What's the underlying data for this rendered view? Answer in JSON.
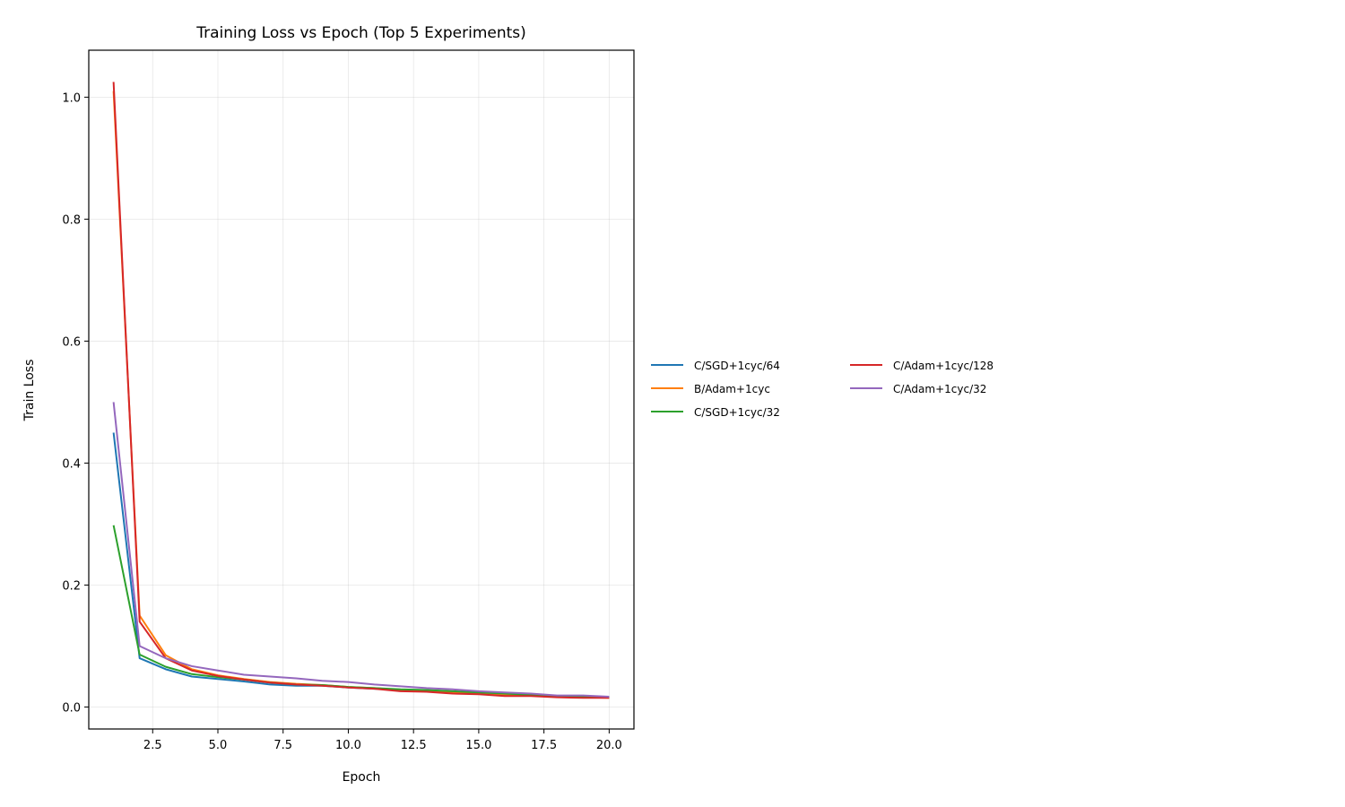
{
  "chart_data": {
    "type": "line",
    "title": "Training Loss vs Epoch (Top 5 Experiments)",
    "xlabel": "Epoch",
    "ylabel": "Train Loss",
    "xlim": [
      0.05,
      20.95
    ],
    "ylim": [
      -0.036,
      1.077
    ],
    "xticks": [
      2.5,
      5.0,
      7.5,
      10.0,
      12.5,
      15.0,
      17.5,
      20.0
    ],
    "xtick_labels": [
      "2.5",
      "5.0",
      "7.5",
      "10.0",
      "12.5",
      "15.0",
      "17.5",
      "20.0"
    ],
    "yticks": [
      0.0,
      0.2,
      0.4,
      0.6,
      0.8,
      1.0
    ],
    "ytick_labels": [
      "0.0",
      "0.2",
      "0.4",
      "0.6",
      "0.8",
      "1.0"
    ],
    "grid": true,
    "legend_placement": "outside right, 2 columns",
    "x": [
      1,
      2,
      3,
      4,
      5,
      6,
      7,
      8,
      9,
      10,
      11,
      12,
      13,
      14,
      15,
      16,
      17,
      18,
      19,
      20
    ],
    "series": [
      {
        "name": "C/SGD+1cyc/64",
        "color": "#1f77b4",
        "values": [
          0.45,
          0.08,
          0.062,
          0.05,
          0.046,
          0.042,
          0.037,
          0.035,
          0.035,
          0.032,
          0.03,
          0.028,
          0.027,
          0.025,
          0.023,
          0.021,
          0.019,
          0.017,
          0.017,
          0.016
        ]
      },
      {
        "name": "B/Adam+1cyc",
        "color": "#ff7f0e",
        "values": [
          1.01,
          0.15,
          0.085,
          0.062,
          0.052,
          0.046,
          0.041,
          0.038,
          0.036,
          0.033,
          0.031,
          0.028,
          0.027,
          0.024,
          0.022,
          0.02,
          0.019,
          0.017,
          0.016,
          0.015
        ]
      },
      {
        "name": "C/SGD+1cyc/32",
        "color": "#2ca02c",
        "values": [
          0.298,
          0.086,
          0.066,
          0.054,
          0.049,
          0.045,
          0.04,
          0.037,
          0.036,
          0.033,
          0.031,
          0.029,
          0.028,
          0.026,
          0.024,
          0.022,
          0.02,
          0.018,
          0.017,
          0.016
        ]
      },
      {
        "name": "C/Adam+1cyc/128",
        "color": "#d62728",
        "values": [
          1.025,
          0.14,
          0.08,
          0.06,
          0.051,
          0.045,
          0.04,
          0.037,
          0.035,
          0.032,
          0.03,
          0.026,
          0.025,
          0.022,
          0.021,
          0.018,
          0.018,
          0.016,
          0.015,
          0.015
        ]
      },
      {
        "name": "C/Adam+1cyc/32",
        "color": "#9467bd",
        "values": [
          0.5,
          0.1,
          0.08,
          0.067,
          0.06,
          0.053,
          0.05,
          0.047,
          0.043,
          0.041,
          0.037,
          0.034,
          0.031,
          0.029,
          0.026,
          0.024,
          0.022,
          0.019,
          0.019,
          0.017
        ]
      }
    ]
  }
}
